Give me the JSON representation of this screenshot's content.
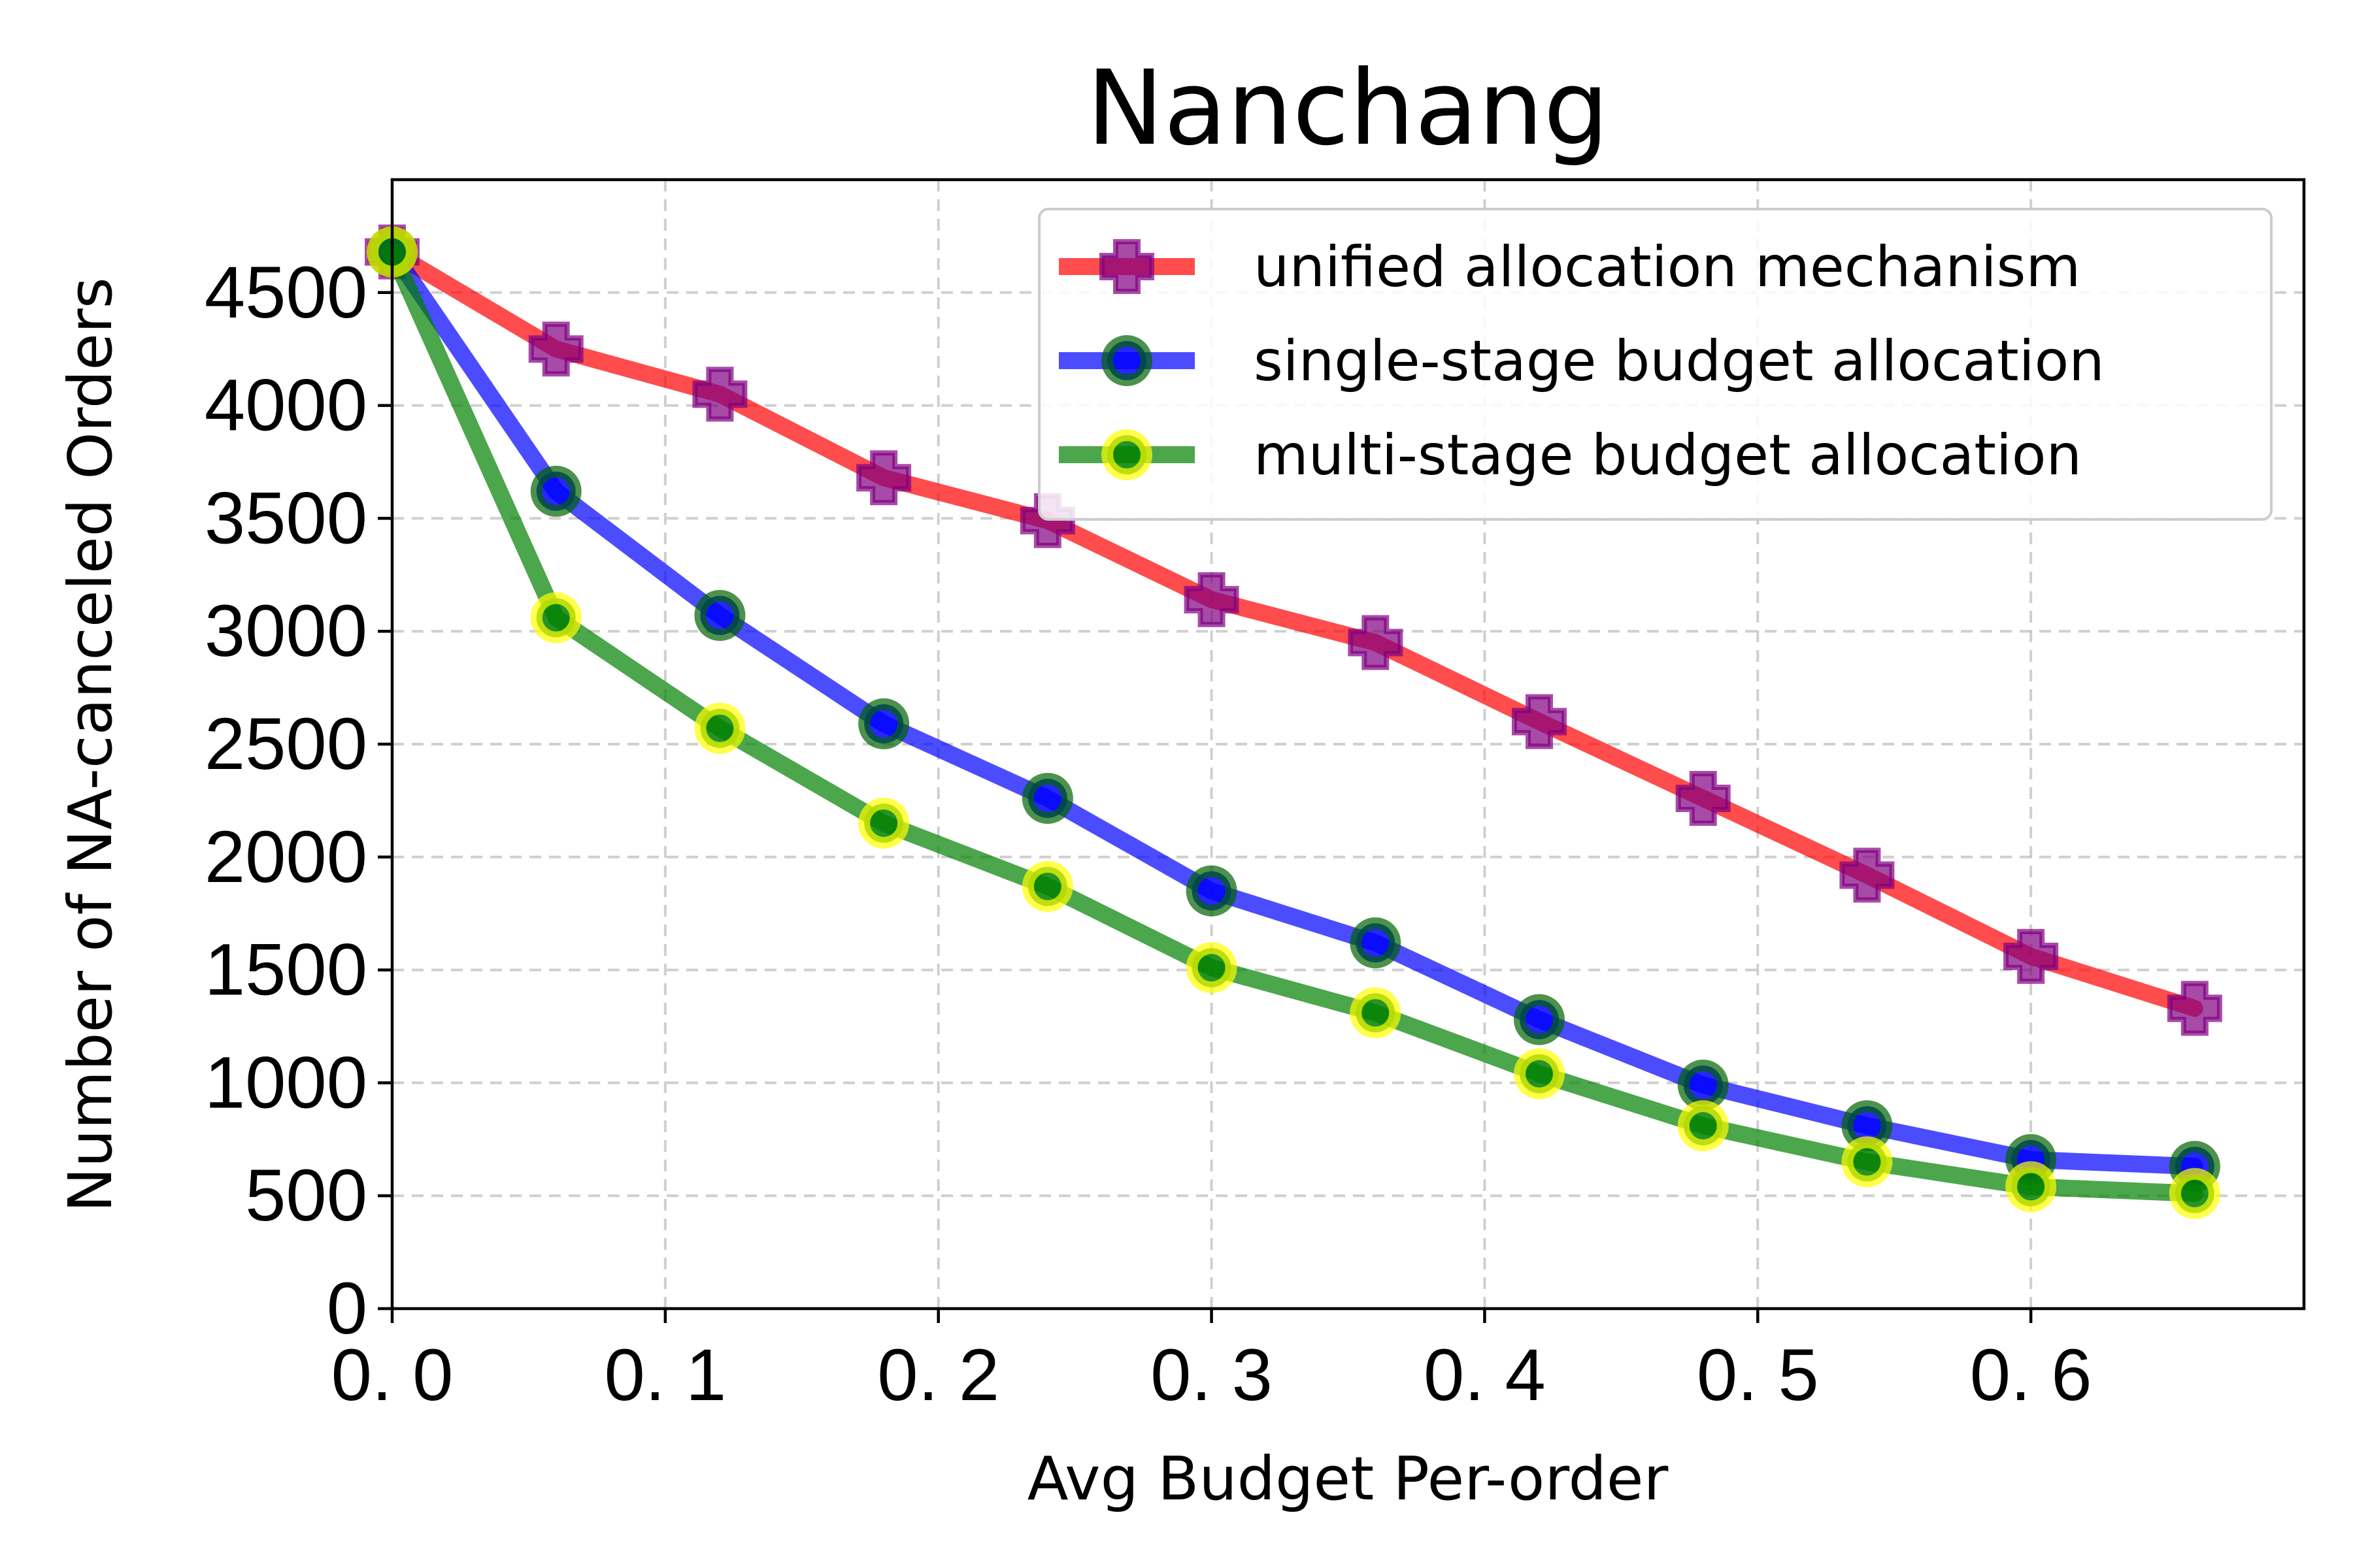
{
  "chart_data": {
    "type": "line",
    "title": "Nanchang",
    "xlabel": "Avg Budget Per-order",
    "ylabel": "Number of NA-canceled Orders",
    "xlim": [
      0.0,
      0.7
    ],
    "ylim": [
      0,
      5000
    ],
    "grid": true,
    "legend_position": "top-right",
    "x_ticks": [
      0.0,
      0.1,
      0.2,
      0.3,
      0.4,
      0.5,
      0.6
    ],
    "x_tick_labels": [
      "0. 0",
      "0. 1",
      "0. 2",
      "0. 3",
      "0. 4",
      "0. 5",
      "0. 6"
    ],
    "y_ticks": [
      0,
      500,
      1000,
      1500,
      2000,
      2500,
      3000,
      3500,
      4000,
      4500
    ],
    "y_tick_labels": [
      "0",
      "500",
      "1000",
      "1500",
      "2000",
      "2500",
      "3000",
      "3500",
      "4000",
      "4500"
    ],
    "x": [
      0.0,
      0.06,
      0.12,
      0.18,
      0.24,
      0.3,
      0.36,
      0.42,
      0.48,
      0.54,
      0.6,
      0.66
    ],
    "series": [
      {
        "name": "unified allocation mechanism",
        "color": "#ff0000",
        "marker": "plus",
        "marker_color": "#800080",
        "values": [
          4680,
          4250,
          4050,
          3680,
          3490,
          3140,
          2950,
          2600,
          2260,
          1920,
          1560,
          1330
        ]
      },
      {
        "name": "single-stage budget allocation",
        "color": "#0000ff",
        "marker": "circle",
        "marker_color": "#0000ff",
        "marker_edge": "#006400",
        "values": [
          4680,
          3620,
          3070,
          2590,
          2260,
          1850,
          1620,
          1280,
          990,
          810,
          660,
          630
        ]
      },
      {
        "name": "multi-stage budget allocation",
        "color": "#008000",
        "marker": "circle",
        "marker_color": "#008000",
        "marker_edge": "#ffff00",
        "values": [
          4680,
          3060,
          2570,
          2150,
          1870,
          1510,
          1310,
          1040,
          810,
          650,
          540,
          510
        ]
      }
    ]
  }
}
